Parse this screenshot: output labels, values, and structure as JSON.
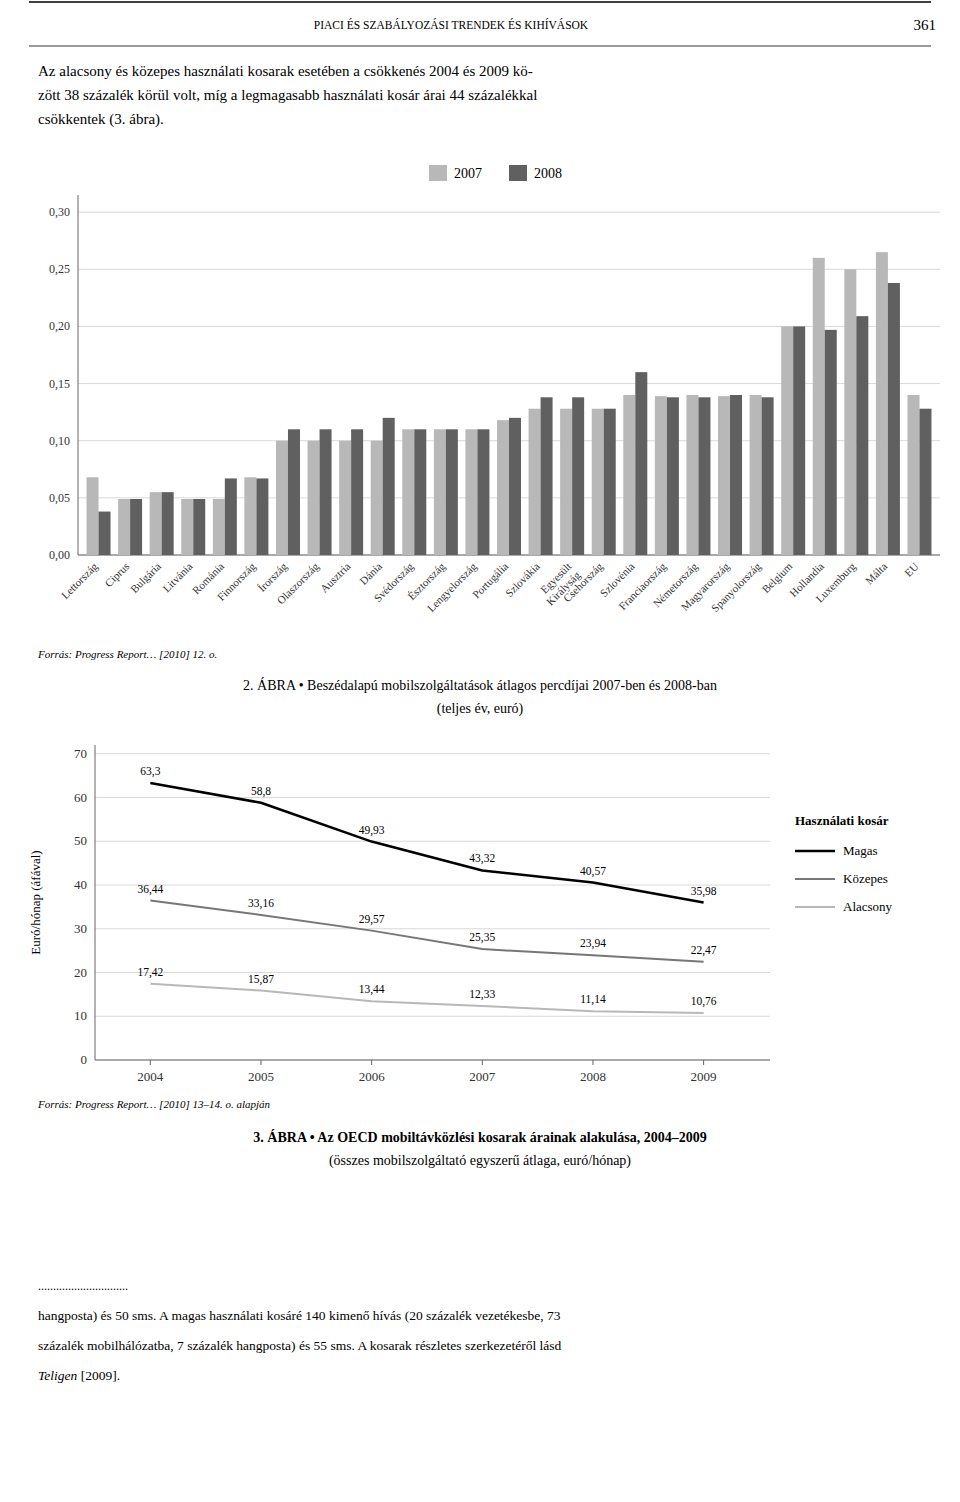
{
  "page_header": "PIACI ÉS SZABÁLYOZÁSI TRENDEK ÉS KIHÍVÁSOK",
  "page_number": "361",
  "intro_lines": [
    "Az alacsony és közepes használati kosarak esetében a csökkenés 2004 és 2009 kö-",
    "zött 38 százalék körül volt, míg a legmagasabb használati kosár árai 44 százalékkal",
    "csökkentek (3. ábra)."
  ],
  "chart_data": [
    {
      "type": "bar",
      "title": "2. ÁBRA • Beszédalapú mobilszolgáltatások átlagos percdíjai 2007-ben és 2008-ban",
      "subtitle": "(teljes év, euró)",
      "source": "Forrás: Progress Report… [2010] 12. o.",
      "categories": [
        "Lettország",
        "Ciprus",
        "Bulgária",
        "Litvánia",
        "Románia",
        "Finnország",
        "Írország",
        "Olaszország",
        "Ausztria",
        "Dánia",
        "Svédország",
        "Észtország",
        "Lengyelország",
        "Portugália",
        "Szlovákia",
        "Egyesült\nKirályság",
        "Csehország",
        "Szlovénia",
        "Franciaország",
        "Németország",
        "Magyarország",
        "Spanyolország",
        "Belgium",
        "Hollandia",
        "Luxemburg",
        "Málta",
        "EU"
      ],
      "series": [
        {
          "name": "2007",
          "color": "#b8b8b8",
          "values": [
            0.068,
            0.049,
            0.055,
            0.049,
            0.049,
            0.068,
            0.1,
            0.1,
            0.1,
            0.1,
            0.11,
            0.11,
            0.11,
            0.118,
            0.128,
            0.128,
            0.128,
            0.14,
            0.139,
            0.14,
            0.139,
            0.14,
            0.2,
            0.26,
            0.25,
            0.265,
            0.14
          ]
        },
        {
          "name": "2008",
          "color": "#606060",
          "values": [
            0.038,
            0.049,
            0.055,
            0.049,
            0.067,
            0.067,
            0.11,
            0.11,
            0.11,
            0.12,
            0.11,
            0.11,
            0.11,
            0.12,
            0.138,
            0.138,
            0.128,
            0.16,
            0.138,
            0.138,
            0.14,
            0.138,
            0.2,
            0.197,
            0.209,
            0.238,
            0.128
          ]
        }
      ],
      "ylim": [
        0.0,
        0.315
      ],
      "yticks": [
        {
          "value": 0.0,
          "label": "0,00"
        },
        {
          "value": 0.05,
          "label": "0,05"
        },
        {
          "value": 0.1,
          "label": "0,10"
        },
        {
          "value": 0.15,
          "label": "0,15"
        },
        {
          "value": 0.2,
          "label": "0,20"
        },
        {
          "value": 0.25,
          "label": "0,25"
        },
        {
          "value": 0.3,
          "label": "0,30"
        }
      ],
      "grid": true,
      "legend": "top"
    },
    {
      "type": "line",
      "title": "3. ÁBRA • Az OECD mobiltávközlési kosarak árainak alakulása, 2004–2009",
      "subtitle": "(összes mobilszolgáltató egyszerű átlaga, euró/hónap)",
      "source": "Forrás: Progress Report… [2010] 13–14. o. alapján",
      "y_label": "Euró/hónap (áfával)",
      "legend_title": "Használati kosár",
      "x": [
        2004,
        2005,
        2006,
        2007,
        2008,
        2009
      ],
      "xlim": [
        2003.5,
        2009.6
      ],
      "xticks": [
        2004,
        2005,
        2006,
        2007,
        2008,
        2009
      ],
      "ylim": [
        0,
        72
      ],
      "yticks": [
        0,
        10,
        20,
        30,
        40,
        50,
        60,
        70
      ],
      "series": [
        {
          "name": "Magas",
          "color": "#000000",
          "values": [
            63.3,
            58.8,
            49.93,
            43.32,
            40.57,
            35.98
          ],
          "value_labels": [
            "63,3",
            "58,8",
            "49,93",
            "43,32",
            "40,57",
            "35,98"
          ]
        },
        {
          "name": "Közepes",
          "color": "#777777",
          "values": [
            36.44,
            33.16,
            29.57,
            25.35,
            23.94,
            22.47
          ],
          "value_labels": [
            "36,44",
            "33,16",
            "29,57",
            "25,35",
            "23,94",
            "22,47"
          ]
        },
        {
          "name": "Alacsony",
          "color": "#b8b8b8",
          "values": [
            17.42,
            15.87,
            13.44,
            12.33,
            11.14,
            10.76
          ],
          "value_labels": [
            "17,42",
            "15,87",
            "13,44",
            "12,33",
            "11,14",
            "10,76"
          ]
        }
      ],
      "data_labels": true,
      "grid": true,
      "legend": "right"
    }
  ],
  "footer_lines": [
    "..............................",
    "hangposta) és 50 sms. A magas használati kosáré 140 kimenő hívás (20 százalék vezetékesbe, 73",
    "százalék mobilhálózatba, 7 százalék hangposta) és 55 sms. A kosarak részletes szerkezetéről lásd"
  ],
  "footer_last_line": [
    "Teligen",
    " [2009]."
  ]
}
